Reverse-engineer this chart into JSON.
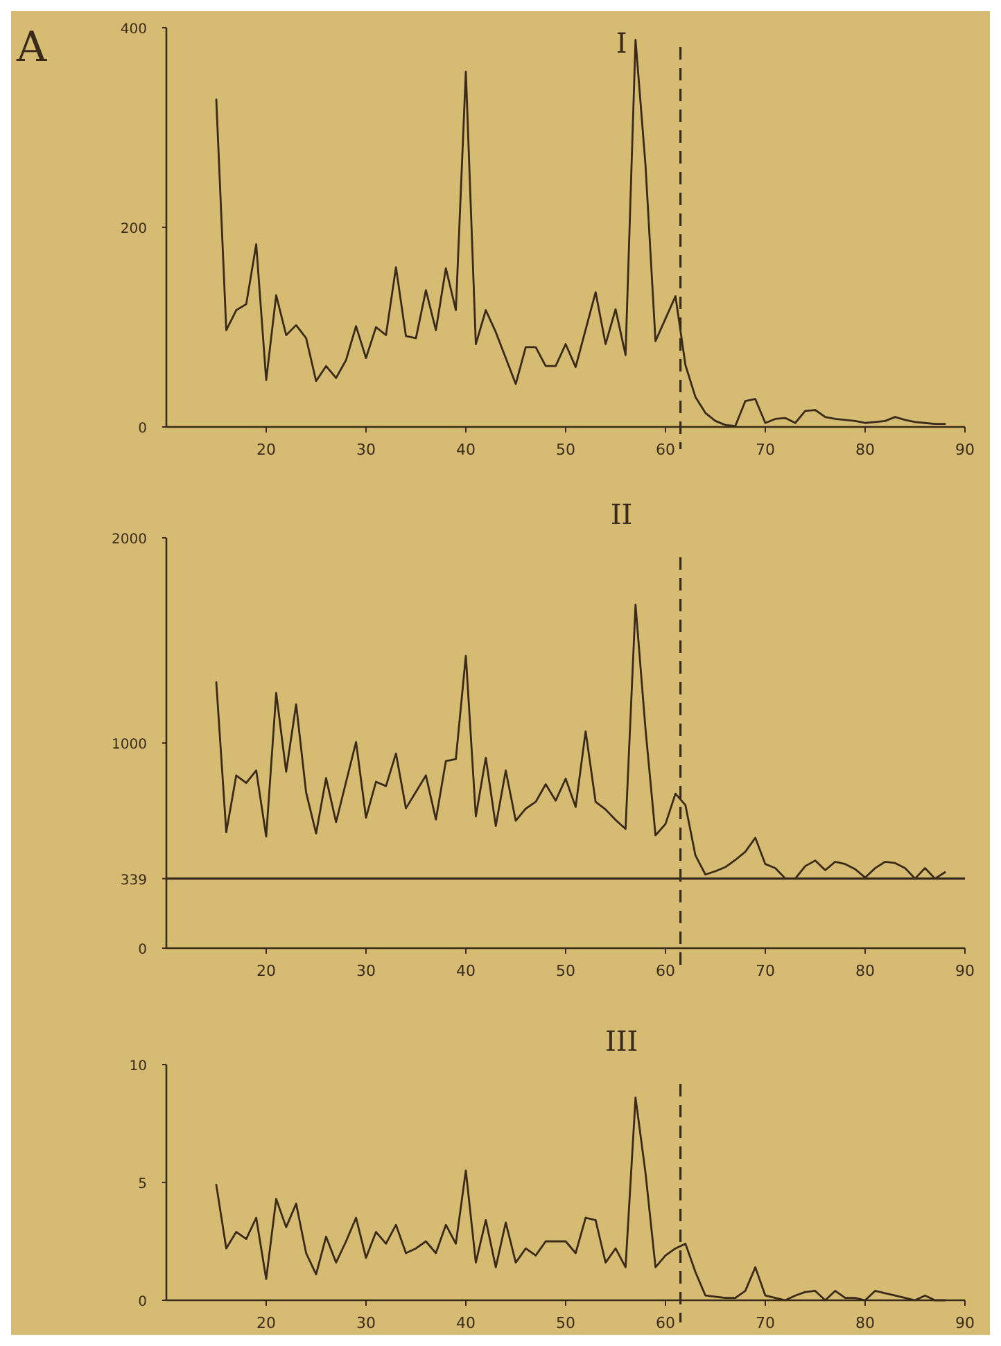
{
  "chart_data": [
    {
      "type": "line",
      "title": "I",
      "annotations": [
        "A"
      ],
      "xlim": [
        10,
        90
      ],
      "xticks": [
        20,
        30,
        40,
        50,
        60,
        70,
        80,
        90
      ],
      "ylim": [
        0,
        400
      ],
      "yticks": [
        0,
        200,
        400
      ],
      "ref_lines": [
        {
          "axis": "x",
          "value": 61.5,
          "line_style": "dashed"
        }
      ],
      "series": [
        {
          "color": "#3a2a1a",
          "x": [
            15,
            16,
            17,
            18,
            19,
            20,
            21,
            22,
            23,
            24,
            25,
            26,
            27,
            28,
            29,
            30,
            31,
            32,
            33,
            34,
            35,
            36,
            37,
            38,
            39,
            40,
            41,
            42,
            43,
            45,
            46,
            47,
            48,
            49,
            50,
            51,
            53,
            54,
            55,
            56,
            57,
            58,
            59,
            61,
            62,
            63,
            64,
            65,
            66,
            67,
            68,
            69,
            70,
            71,
            72,
            73,
            74,
            75,
            76,
            77,
            78,
            79,
            80,
            81,
            82,
            83,
            84,
            85,
            86,
            87,
            88
          ],
          "values": [
            328,
            97,
            117,
            123,
            183,
            47,
            132,
            92,
            102,
            89,
            46,
            61,
            49,
            67,
            101,
            69,
            100,
            92,
            160,
            91,
            89,
            137,
            97,
            159,
            117,
            356,
            83,
            117,
            95,
            43,
            80,
            80,
            61,
            61,
            83,
            60,
            135,
            83,
            118,
            72,
            388,
            262,
            86,
            131,
            62,
            30,
            14,
            6,
            2,
            1,
            26,
            28,
            4,
            8,
            9,
            4,
            16,
            17,
            10,
            8,
            7,
            6,
            4,
            5,
            6,
            10,
            7,
            5,
            4,
            3,
            3
          ]
        }
      ]
    },
    {
      "type": "line",
      "title": "II",
      "xlim": [
        10,
        90
      ],
      "xticks": [
        20,
        30,
        40,
        50,
        60,
        70,
        80,
        90
      ],
      "ylim": [
        0,
        2000
      ],
      "yticks": [
        0,
        339,
        1000,
        2000
      ],
      "ref_lines": [
        {
          "axis": "x",
          "value": 61.5,
          "line_style": "dashed"
        },
        {
          "axis": "y",
          "value": 339,
          "line_style": "solid"
        }
      ],
      "series": [
        {
          "color": "#3a2a1a",
          "x": [
            15,
            16,
            17,
            18,
            19,
            20,
            21,
            22,
            23,
            24,
            25,
            26,
            27,
            28,
            29,
            30,
            31,
            32,
            33,
            34,
            35,
            36,
            37,
            38,
            39,
            40,
            41,
            42,
            43,
            44,
            45,
            46,
            47,
            48,
            49,
            50,
            51,
            52,
            53,
            54,
            55,
            56,
            57,
            58,
            59,
            60,
            61,
            62,
            63,
            64,
            65,
            66,
            67,
            68,
            69,
            70,
            71,
            72,
            73,
            74,
            75,
            76,
            77,
            78,
            79,
            80,
            81,
            82,
            83,
            84,
            85,
            86,
            87,
            88
          ],
          "values": [
            1296,
            565,
            842,
            805,
            866,
            544,
            1244,
            860,
            1189,
            759,
            559,
            829,
            614,
            810,
            1005,
            636,
            811,
            790,
            949,
            682,
            762,
            842,
            627,
            912,
            922,
            1425,
            642,
            928,
            596,
            866,
            621,
            680,
            713,
            799,
            719,
            826,
            688,
            1057,
            713,
            676,
            625,
            581,
            1674,
            1066,
            550,
            605,
            753,
            697,
            452,
            359,
            375,
            395,
            430,
            470,
            538,
            410,
            390,
            340,
            339,
            400,
            427,
            380,
            421,
            410,
            385,
            344,
            390,
            421,
            415,
            390,
            339,
            390,
            339,
            370
          ]
        }
      ]
    },
    {
      "type": "line",
      "title": "III",
      "xlim": [
        10,
        90
      ],
      "xticks": [
        20,
        30,
        40,
        50,
        60,
        70,
        80,
        90
      ],
      "ylim": [
        0,
        10
      ],
      "yticks": [
        0,
        5,
        10
      ],
      "ref_lines": [
        {
          "axis": "x",
          "value": 61.5,
          "line_style": "dashed"
        }
      ],
      "series": [
        {
          "color": "#3a2a1a",
          "x": [
            15,
            16,
            17,
            18,
            19,
            20,
            21,
            22,
            23,
            24,
            25,
            26,
            27,
            28,
            29,
            30,
            31,
            32,
            33,
            34,
            35,
            36,
            37,
            38,
            39,
            40,
            41,
            42,
            43,
            44,
            45,
            46,
            47,
            48,
            49,
            50,
            51,
            52,
            53,
            54,
            55,
            56,
            57,
            58,
            59,
            60,
            61,
            62,
            63,
            64,
            65,
            66,
            67,
            68,
            69,
            70,
            71,
            72,
            73,
            74,
            75,
            76,
            77,
            78,
            79,
            80,
            81,
            82,
            83,
            84,
            85,
            86,
            87,
            88
          ],
          "values": [
            4.9,
            2.2,
            2.9,
            2.6,
            3.5,
            0.9,
            4.3,
            3.1,
            4.1,
            2.0,
            1.1,
            2.7,
            1.6,
            2.5,
            3.5,
            1.8,
            2.9,
            2.4,
            3.2,
            2.0,
            2.2,
            2.5,
            2.0,
            3.2,
            2.4,
            5.5,
            1.6,
            3.4,
            1.4,
            3.3,
            1.6,
            2.2,
            1.9,
            2.5,
            2.5,
            2.5,
            2.0,
            3.5,
            3.4,
            1.6,
            2.2,
            1.4,
            8.6,
            5.4,
            1.4,
            1.9,
            2.2,
            2.4,
            1.2,
            0.2,
            0.15,
            0.1,
            0.1,
            0.4,
            1.4,
            0.2,
            0.1,
            0,
            0.2,
            0.35,
            0.4,
            0,
            0.4,
            0.1,
            0.1,
            0,
            0.4,
            0.3,
            0.2,
            0.1,
            0,
            0.2,
            0,
            0
          ]
        }
      ]
    }
  ]
}
